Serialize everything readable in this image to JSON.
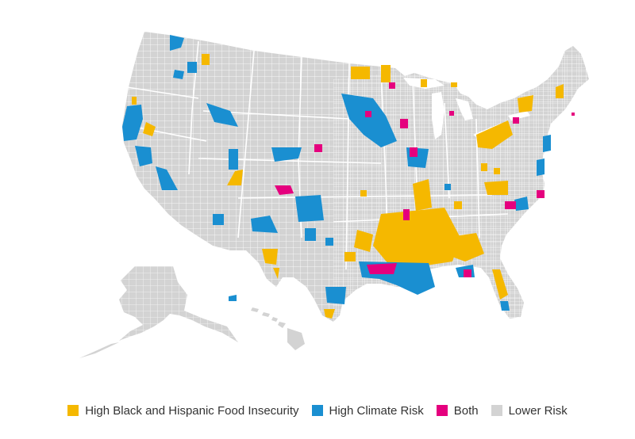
{
  "legend": {
    "items": [
      {
        "key": "food",
        "label": "High Black and Hispanic Food Insecurity",
        "color": "#f5b800"
      },
      {
        "key": "climate",
        "label": "High Climate Risk",
        "color": "#1a8fd1"
      },
      {
        "key": "both",
        "label": "Both",
        "color": "#e5007e"
      },
      {
        "key": "lower",
        "label": "Lower Risk",
        "color": "#d3d3d3"
      }
    ]
  },
  "colors": {
    "land": "#d3d3d3",
    "border": "#ffffff",
    "food": "#f5b800",
    "climate": "#1a8fd1",
    "both": "#e5007e"
  }
}
